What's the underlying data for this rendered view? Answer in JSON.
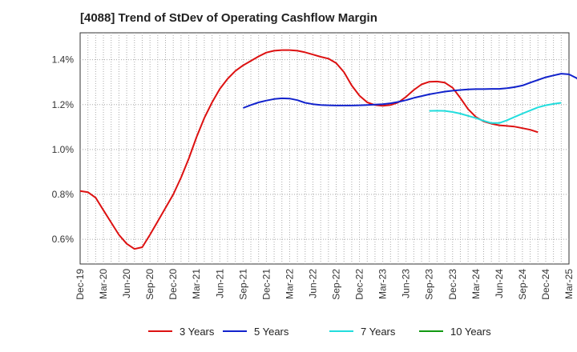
{
  "chart_data": {
    "type": "line",
    "title": "[4088]  Trend of StDev of Operating Cashflow Margin",
    "xlabel": "",
    "ylabel": "",
    "x_ticks": [
      "Dec-19",
      "Mar-20",
      "Jun-20",
      "Sep-20",
      "Dec-20",
      "Mar-21",
      "Jun-21",
      "Sep-21",
      "Dec-21",
      "Mar-22",
      "Jun-22",
      "Sep-22",
      "Dec-22",
      "Mar-23",
      "Jun-23",
      "Sep-23",
      "Dec-23",
      "Mar-24",
      "Jun-24",
      "Sep-24",
      "Dec-24",
      "Mar-25"
    ],
    "y_ticks": [
      "0.6%",
      "0.8%",
      "1.0%",
      "1.2%",
      "1.4%"
    ],
    "y_tick_values": [
      0.6,
      0.8,
      1.0,
      1.2,
      1.4
    ],
    "ylim": [
      0.49,
      1.52
    ],
    "grid": true,
    "legend_position": "bottom",
    "series": [
      {
        "name": "3 Years",
        "color": "#dd1111",
        "start_index": 0,
        "values": [
          0.815,
          0.81,
          0.785,
          0.73,
          0.675,
          0.62,
          0.58,
          0.557,
          0.565,
          0.62,
          0.68,
          0.74,
          0.8,
          0.875,
          0.96,
          1.055,
          1.14,
          1.21,
          1.27,
          1.315,
          1.35,
          1.375,
          1.395,
          1.415,
          1.432,
          1.44,
          1.443,
          1.443,
          1.44,
          1.433,
          1.423,
          1.413,
          1.405,
          1.385,
          1.345,
          1.285,
          1.24,
          1.21,
          1.198,
          1.195,
          1.198,
          1.21,
          1.235,
          1.265,
          1.29,
          1.302,
          1.303,
          1.298,
          1.275,
          1.23,
          1.18,
          1.145,
          1.125,
          1.115,
          1.108,
          1.105,
          1.102,
          1.095,
          1.088,
          1.077
        ]
      },
      {
        "name": "5 Years",
        "color": "#1122cc",
        "start_index": 21,
        "values": [
          1.185,
          1.198,
          1.21,
          1.218,
          1.225,
          1.228,
          1.227,
          1.22,
          1.208,
          1.202,
          1.198,
          1.197,
          1.196,
          1.196,
          1.196,
          1.197,
          1.198,
          1.2,
          1.202,
          1.206,
          1.212,
          1.22,
          1.23,
          1.238,
          1.246,
          1.252,
          1.258,
          1.262,
          1.265,
          1.268,
          1.269,
          1.269,
          1.27,
          1.27,
          1.273,
          1.278,
          1.285,
          1.298,
          1.31,
          1.322,
          1.33,
          1.338,
          1.335,
          1.318,
          1.28
        ]
      },
      {
        "name": "7 Years",
        "color": "#22dddd",
        "start_index": 45,
        "values": [
          1.172,
          1.173,
          1.172,
          1.167,
          1.16,
          1.15,
          1.14,
          1.128,
          1.118,
          1.118,
          1.13,
          1.145,
          1.16,
          1.174,
          1.188,
          1.197,
          1.203,
          1.208
        ]
      },
      {
        "name": "10 Years",
        "color": "#119911",
        "start_index": 0,
        "values": []
      }
    ]
  }
}
